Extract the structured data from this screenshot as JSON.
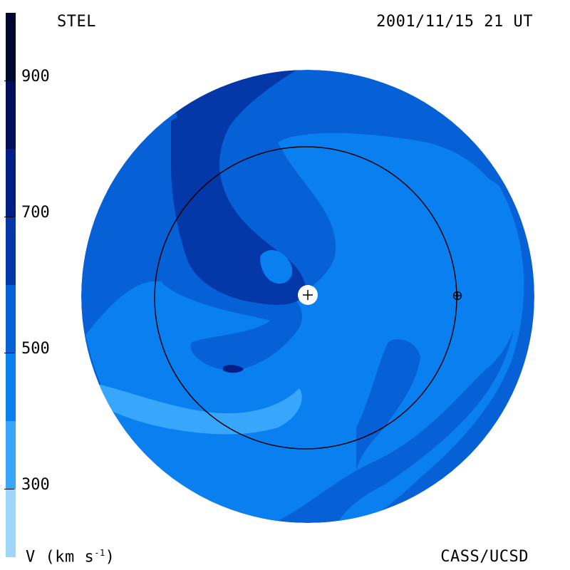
{
  "header": {
    "station": "STEL",
    "datetime": "2001/11/15 21 UT"
  },
  "footer": {
    "credit": "CASS/UCSD",
    "units_label": "V (km s",
    "units_exponent": "-1",
    "units_close": ")"
  },
  "colorbar": {
    "tick_labels": [
      "900",
      "700",
      "500",
      "300"
    ],
    "levels": [
      {
        "from": 200,
        "to": 300,
        "color": "#9fd6fb"
      },
      {
        "from": 300,
        "to": 400,
        "color": "#38a7fb"
      },
      {
        "from": 400,
        "to": 500,
        "color": "#0a7ff0"
      },
      {
        "from": 500,
        "to": 600,
        "color": "#0660d6"
      },
      {
        "from": 600,
        "to": 700,
        "color": "#0438a8"
      },
      {
        "from": 700,
        "to": 800,
        "color": "#021f86"
      },
      {
        "from": 800,
        "to": 900,
        "color": "#010f5a"
      },
      {
        "from": 900,
        "to": 1000,
        "color": "#00072e"
      }
    ],
    "range": [
      200,
      1000
    ]
  },
  "map": {
    "background_color": "#0a7ff0",
    "outer_ring_color": "#0660d6",
    "earth_orbit_color": "#000000",
    "sun_symbol": "+",
    "earth_symbol": "⊕"
  }
}
